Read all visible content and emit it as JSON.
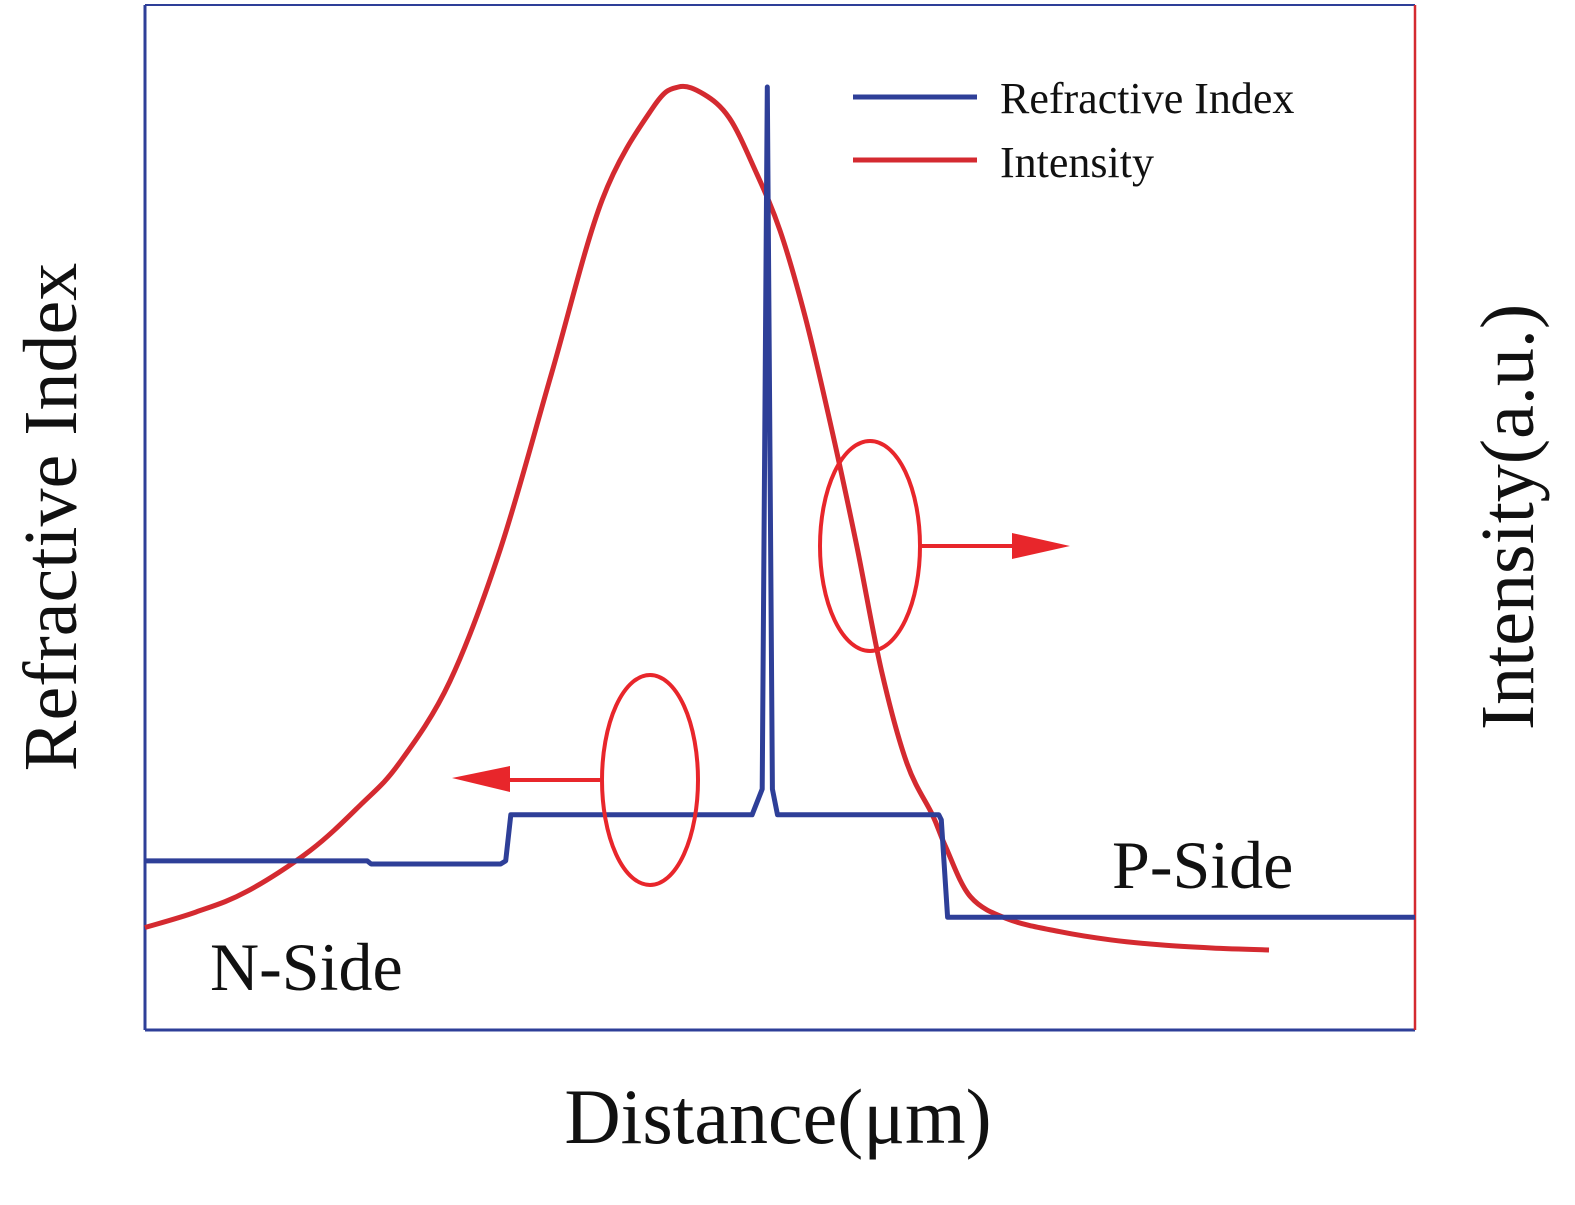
{
  "chart_data": {
    "type": "line",
    "title": "",
    "xlabel": "Distance(μm)",
    "ylabel_left": "Refractive Index",
    "ylabel_right": "Intensity(a.u.)",
    "xlim": [
      0,
      100
    ],
    "ylim": [
      0,
      100
    ],
    "grid": false,
    "ticks": "none",
    "legend_position": "top-right",
    "legend": [
      {
        "label": "Refractive Index",
        "color": "#2e3f98"
      },
      {
        "label": "Intensity",
        "color": "#d42a30"
      }
    ],
    "series": [
      {
        "name": "Refractive Index",
        "axis": "left",
        "color": "#2e3f98",
        "x": [
          0,
          17.5,
          17.8,
          28,
          28.4,
          28.8,
          40,
          47.8,
          48.6,
          49,
          49.4,
          49.8,
          50.6,
          62.5,
          62.7,
          63.2,
          100
        ],
        "y": [
          16.5,
          16.5,
          16.2,
          16.2,
          16.5,
          21,
          21,
          21,
          23.5,
          92,
          23.5,
          21,
          21,
          21,
          20.5,
          11,
          11
        ]
      },
      {
        "name": "Intensity",
        "axis": "right",
        "color": "#d42a30",
        "x": [
          0,
          4,
          8,
          13,
          17,
          20,
          24,
          28,
          32,
          36,
          40,
          42,
          44,
          46,
          48,
          50,
          52,
          54,
          56,
          58,
          60,
          62,
          63,
          65,
          68,
          72,
          76,
          80,
          84,
          88.5
        ],
        "y": [
          10,
          11.5,
          13.5,
          17.5,
          22,
          26,
          34,
          47,
          64,
          81,
          90,
          92,
          91.3,
          89,
          84,
          78,
          69.5,
          59,
          47.5,
          35,
          26,
          21,
          18,
          13,
          10.8,
          9.6,
          8.8,
          8.3,
          8,
          7.8
        ]
      }
    ],
    "annotations": {
      "n_side": "N-Side",
      "p_side": "P-Side"
    },
    "markers": [
      {
        "series": "Refractive Index",
        "axis_direction": "left",
        "color": "#e8262b"
      },
      {
        "series": "Intensity",
        "axis_direction": "right",
        "color": "#e8262b"
      }
    ],
    "axis_colors": {
      "left": "#2e3f98",
      "right": "#d42a30",
      "frame": "#2e3f98"
    }
  }
}
